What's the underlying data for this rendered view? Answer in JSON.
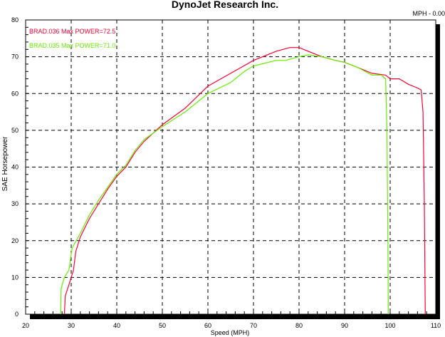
{
  "chart_data": {
    "type": "line",
    "title": "DynoJet Research Inc.",
    "status_readout": "MPH - 0.00",
    "xlabel": "Speed (MPH)",
    "ylabel": "SAE Horsepower",
    "xlim": [
      20,
      110
    ],
    "ylim": [
      0,
      80
    ],
    "xticks": [
      20,
      30,
      40,
      50,
      60,
      70,
      80,
      90,
      100,
      110
    ],
    "yticks": [
      0,
      10,
      20,
      30,
      40,
      50,
      60,
      70,
      80
    ],
    "grid": true,
    "legend_position": "top-left",
    "series": [
      {
        "name": "BRAD.036",
        "legend": "BRAD.036  Max POWER=72.5",
        "color": "#ff0033",
        "points": [
          [
            28.5,
            0
          ],
          [
            28.7,
            5
          ],
          [
            29.5,
            8
          ],
          [
            30.5,
            12
          ],
          [
            31,
            17
          ],
          [
            32,
            21
          ],
          [
            34,
            26
          ],
          [
            36,
            30
          ],
          [
            38,
            34
          ],
          [
            40,
            37.5
          ],
          [
            42,
            40
          ],
          [
            44,
            44
          ],
          [
            46,
            47
          ],
          [
            50,
            51.5
          ],
          [
            55,
            56
          ],
          [
            60,
            62
          ],
          [
            65,
            65.5
          ],
          [
            70,
            69
          ],
          [
            75,
            71.5
          ],
          [
            78,
            72.5
          ],
          [
            80,
            72.5
          ],
          [
            82,
            71.5
          ],
          [
            85,
            70
          ],
          [
            88,
            69
          ],
          [
            90,
            68.5
          ],
          [
            93,
            67
          ],
          [
            96,
            65.5
          ],
          [
            99,
            65
          ],
          [
            100,
            64
          ],
          [
            102,
            64
          ],
          [
            104,
            62.5
          ],
          [
            106,
            61.5
          ],
          [
            106.8,
            61
          ],
          [
            107.2,
            55
          ],
          [
            107.5,
            30
          ],
          [
            107.7,
            0
          ]
        ]
      },
      {
        "name": "BRAD.035",
        "legend": "BRAD.035  Max POWER=71.0",
        "color": "#66ee00",
        "points": [
          [
            27.7,
            0
          ],
          [
            27.8,
            7
          ],
          [
            28.5,
            10
          ],
          [
            29.5,
            12
          ],
          [
            30.2,
            18
          ],
          [
            32,
            22
          ],
          [
            34,
            27
          ],
          [
            36,
            31
          ],
          [
            38,
            34.5
          ],
          [
            40,
            38
          ],
          [
            42,
            40.5
          ],
          [
            44,
            44.5
          ],
          [
            46,
            47.5
          ],
          [
            50,
            51
          ],
          [
            55,
            55
          ],
          [
            60,
            60
          ],
          [
            65,
            63
          ],
          [
            68,
            66
          ],
          [
            70,
            67.5
          ],
          [
            75,
            69
          ],
          [
            77,
            69
          ],
          [
            80,
            70
          ],
          [
            82,
            70.5
          ],
          [
            85,
            70
          ],
          [
            88,
            69
          ],
          [
            90,
            68.5
          ],
          [
            93,
            67
          ],
          [
            96,
            65
          ],
          [
            98,
            65
          ],
          [
            99,
            64
          ],
          [
            99.3,
            50
          ],
          [
            99.5,
            20
          ],
          [
            99.6,
            0
          ]
        ]
      }
    ]
  }
}
